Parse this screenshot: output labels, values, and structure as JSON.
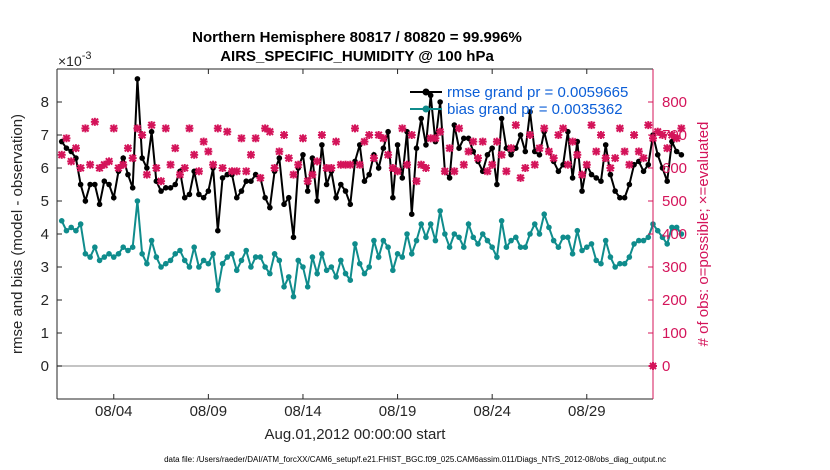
{
  "title_line1": "Northern Hemisphere 80817 / 80820 = 99.996%",
  "title_line2": "AIRS_SPECIFIC_HUMIDITY @ 100 hPa",
  "exponent_label": "×10",
  "exponent_power": "-3",
  "footer": "data file: /Users/raeder/DAI/ATM_forcXX/CAM6_setup/f.e21.FHIST_BGC.f09_025.CAM6assim.011/Diags_NTrS_2012-08/obs_diag_output.nc",
  "chart_data": {
    "type": "line",
    "xlabel": "Aug.01,2012 00:00:00 start",
    "ylabel": "rmse and bias (model - observation)",
    "y2label": "# of obs: o=possible; ×=evaluated",
    "xlim": [
      0,
      31.5
    ],
    "ylim": [
      -1,
      9
    ],
    "y2lim": [
      -100,
      900
    ],
    "grid": false,
    "legend_position": "top-right",
    "xticks": [
      3,
      8,
      13,
      18,
      23,
      28
    ],
    "xtick_labels": [
      "08/04",
      "08/09",
      "08/14",
      "08/19",
      "08/24",
      "08/29"
    ],
    "yticks": [
      0,
      1,
      2,
      3,
      4,
      5,
      6,
      7,
      8
    ],
    "y2ticks": [
      0,
      100,
      200,
      300,
      400,
      500,
      600,
      700,
      800
    ],
    "x_start": 0.25,
    "x_step": 0.25,
    "series": [
      {
        "name": "rmse grand pr = 0.0059665",
        "color": "#000000",
        "axis": "left",
        "values": [
          6.8,
          6.6,
          6.5,
          6.3,
          5.5,
          5.0,
          5.5,
          5.5,
          4.9,
          5.6,
          5.5,
          5.1,
          5.9,
          6.3,
          5.8,
          5.4,
          8.7,
          6.3,
          6.0,
          7.1,
          5.6,
          5.3,
          5.4,
          5.4,
          5.5,
          5.9,
          5.1,
          5.2,
          5.9,
          5.2,
          5.1,
          5.3,
          6.0,
          4.1,
          5.7,
          5.8,
          5.8,
          5.1,
          5.3,
          5.6,
          5.6,
          5.8,
          5.7,
          5.1,
          4.8,
          5.9,
          6.3,
          4.9,
          5.1,
          3.9,
          6.0,
          6.4,
          5.3,
          6.3,
          5.0,
          6.7,
          5.5,
          5.9,
          5.1,
          5.5,
          5.3,
          4.9,
          6.2,
          6.7,
          5.6,
          5.8,
          6.4,
          6.0,
          6.6,
          7.1,
          5.1,
          6.7,
          5.7,
          7.1,
          4.6,
          6.6,
          7.5,
          6.7,
          8.2,
          6.8,
          8.0,
          5.9,
          5.7,
          7.3,
          6.6,
          6.9,
          6.9,
          6.5,
          6.2,
          5.9,
          6.4,
          6.6,
          5.5,
          7.5,
          6.6,
          6.4,
          6.6,
          7.0,
          6.5,
          7.7,
          6.5,
          6.4,
          7.1,
          6.5,
          6.2,
          5.9,
          6.1,
          7.1,
          5.7,
          6.8,
          5.3,
          6.1,
          5.8,
          5.7,
          5.6,
          6.7,
          5.8,
          5.3,
          5.1,
          5.1,
          5.5,
          6.1,
          6.2,
          5.9,
          6.1,
          7.0,
          6.4,
          6.0,
          5.6,
          6.8,
          6.5,
          6.4
        ],
        "marker": "circle"
      },
      {
        "name": "bias grand pr = 0.0035362",
        "color": "#0f8c8c",
        "axis": "left",
        "values": [
          4.4,
          4.1,
          4.2,
          4.1,
          4.3,
          3.4,
          3.3,
          3.6,
          3.2,
          3.3,
          3.4,
          3.3,
          3.4,
          3.6,
          3.5,
          3.6,
          5.0,
          3.4,
          3.1,
          3.8,
          3.3,
          3.0,
          3.1,
          3.2,
          3.4,
          3.5,
          3.2,
          3.0,
          3.6,
          3.0,
          3.2,
          3.1,
          3.4,
          2.3,
          3.1,
          3.3,
          3.4,
          2.9,
          3.2,
          3.5,
          3.0,
          3.3,
          3.3,
          3.0,
          2.8,
          3.4,
          3.2,
          2.4,
          2.7,
          2.1,
          3.2,
          3.0,
          2.4,
          3.3,
          2.8,
          3.4,
          2.9,
          3.0,
          2.7,
          3.2,
          2.8,
          2.6,
          3.7,
          3.1,
          2.8,
          3.0,
          3.8,
          3.3,
          3.8,
          3.6,
          2.9,
          3.4,
          3.3,
          4.0,
          3.4,
          3.8,
          4.3,
          3.9,
          4.3,
          3.8,
          4.7,
          4.0,
          3.6,
          4.0,
          3.9,
          3.6,
          4.3,
          3.9,
          3.7,
          4.0,
          3.8,
          3.6,
          3.3,
          4.4,
          3.6,
          3.8,
          3.9,
          3.6,
          3.6,
          4.0,
          4.3,
          4.0,
          4.6,
          4.2,
          3.8,
          3.6,
          3.9,
          3.9,
          3.4,
          4.1,
          3.5,
          3.6,
          3.7,
          3.2,
          3.1,
          3.8,
          3.3,
          3.0,
          3.1,
          3.1,
          3.3,
          3.7,
          3.8,
          3.8,
          3.9,
          4.3,
          4.1,
          3.9,
          3.7,
          4.2,
          4.2,
          4.0
        ],
        "marker": "circle"
      },
      {
        "name": "possible obs",
        "color": "#d4145a",
        "axis": "right",
        "values": [
          640,
          690,
          620,
          660,
          600,
          720,
          610,
          740,
          600,
          610,
          620,
          720,
          600,
          610,
          660,
          630,
          720,
          700,
          580,
          730,
          600,
          560,
          720,
          610,
          660,
          580,
          600,
          720,
          640,
          590,
          680,
          650,
          610,
          720,
          600,
          710,
          590,
          590,
          690,
          590,
          640,
          690,
          570,
          720,
          710,
          600,
          650,
          700,
          630,
          580,
          610,
          690,
          560,
          580,
          620,
          700,
          600,
          600,
          680,
          610,
          610,
          610,
          720,
          610,
          680,
          700,
          630,
          700,
          690,
          640,
          600,
          590,
          720,
          610,
          700,
          560,
          610,
          600,
          690,
          690,
          710,
          590,
          660,
          590,
          720,
          610,
          650,
          680,
          630,
          680,
          590,
          610,
          680,
          640,
          590,
          660,
          730,
          570,
          600,
          700,
          610,
          660,
          720,
          650,
          630,
          700,
          720,
          610,
          680,
          640,
          580,
          610,
          730,
          650,
          700,
          630,
          600,
          630,
          720,
          650,
          610,
          700,
          650,
          630,
          730,
          690,
          710,
          700,
          660,
          700,
          690,
          720
        ],
        "marker": "plus"
      },
      {
        "name": "evaluated obs",
        "color": "#d4145a",
        "axis": "right",
        "values": [
          640,
          690,
          620,
          660,
          600,
          720,
          610,
          740,
          600,
          610,
          620,
          720,
          600,
          610,
          660,
          630,
          720,
          700,
          580,
          730,
          600,
          560,
          720,
          610,
          660,
          580,
          600,
          720,
          640,
          590,
          680,
          650,
          610,
          720,
          600,
          710,
          590,
          590,
          690,
          590,
          640,
          690,
          570,
          720,
          710,
          600,
          650,
          700,
          630,
          580,
          610,
          690,
          560,
          580,
          620,
          700,
          600,
          600,
          680,
          610,
          610,
          610,
          720,
          610,
          680,
          700,
          630,
          700,
          690,
          640,
          600,
          590,
          720,
          610,
          700,
          560,
          610,
          600,
          690,
          690,
          710,
          590,
          660,
          590,
          720,
          610,
          650,
          680,
          630,
          680,
          590,
          610,
          680,
          640,
          590,
          660,
          730,
          570,
          600,
          700,
          610,
          660,
          720,
          650,
          630,
          700,
          720,
          610,
          680,
          640,
          580,
          610,
          730,
          650,
          700,
          630,
          600,
          630,
          720,
          650,
          610,
          700,
          650,
          630,
          730,
          690,
          710,
          700,
          660,
          700,
          690,
          720
        ],
        "marker": "x"
      }
    ]
  }
}
